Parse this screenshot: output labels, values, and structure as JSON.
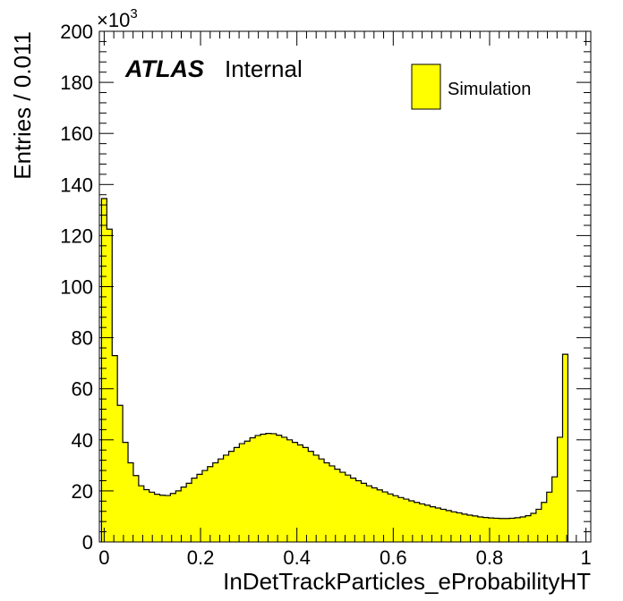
{
  "chart_data": {
    "type": "histogram",
    "xlabel": "InDetTrackParticles_eProbabilityHT",
    "ylabel": "Entries / 0.011",
    "xlim": [
      -0.01,
      1.01
    ],
    "ylim": [
      0,
      200
    ],
    "y_multiplier_label": "×10",
    "y_multiplier_exponent": "3",
    "x_ticks": [
      "0",
      "0.2",
      "0.4",
      "0.6",
      "0.8",
      "1"
    ],
    "y_ticks": [
      "0",
      "20",
      "40",
      "60",
      "80",
      "100",
      "120",
      "140",
      "160",
      "180",
      "200"
    ],
    "annotation": {
      "experiment": "ATLAS",
      "status": "Internal"
    },
    "legend": {
      "position": "top-right",
      "entries": [
        {
          "label": "Simulation",
          "color": "#ffff00"
        }
      ]
    },
    "bin_width": 0.011,
    "bin_start": -0.0055,
    "values": [
      134.5,
      122.5,
      73,
      53.5,
      39,
      31,
      26,
      22,
      20.5,
      19.5,
      18.7,
      18.3,
      18.2,
      19,
      20,
      21.5,
      23,
      25,
      26.5,
      28,
      29.5,
      31,
      32.5,
      34,
      35.5,
      37,
      38.5,
      39.5,
      40.8,
      41.7,
      42.2,
      42.5,
      42.4,
      41.8,
      41,
      40,
      39,
      38,
      37,
      35.5,
      34,
      32.5,
      31,
      29.8,
      28.5,
      27.3,
      26.2,
      25,
      24,
      23,
      22,
      21.2,
      20.4,
      19.6,
      18.8,
      18.1,
      17.4,
      16.8,
      16.1,
      15.5,
      14.9,
      14.4,
      13.8,
      13.3,
      12.8,
      12.3,
      11.8,
      11.4,
      10.9,
      10.5,
      10.2,
      9.8,
      9.6,
      9.4,
      9.3,
      9.2,
      9.2,
      9.3,
      9.5,
      9.8,
      10.3,
      11.2,
      12.8,
      15.5,
      19.5,
      25.5,
      41,
      73.5
    ],
    "colors": {
      "fill": "#ffff00",
      "line": "#000000"
    }
  }
}
